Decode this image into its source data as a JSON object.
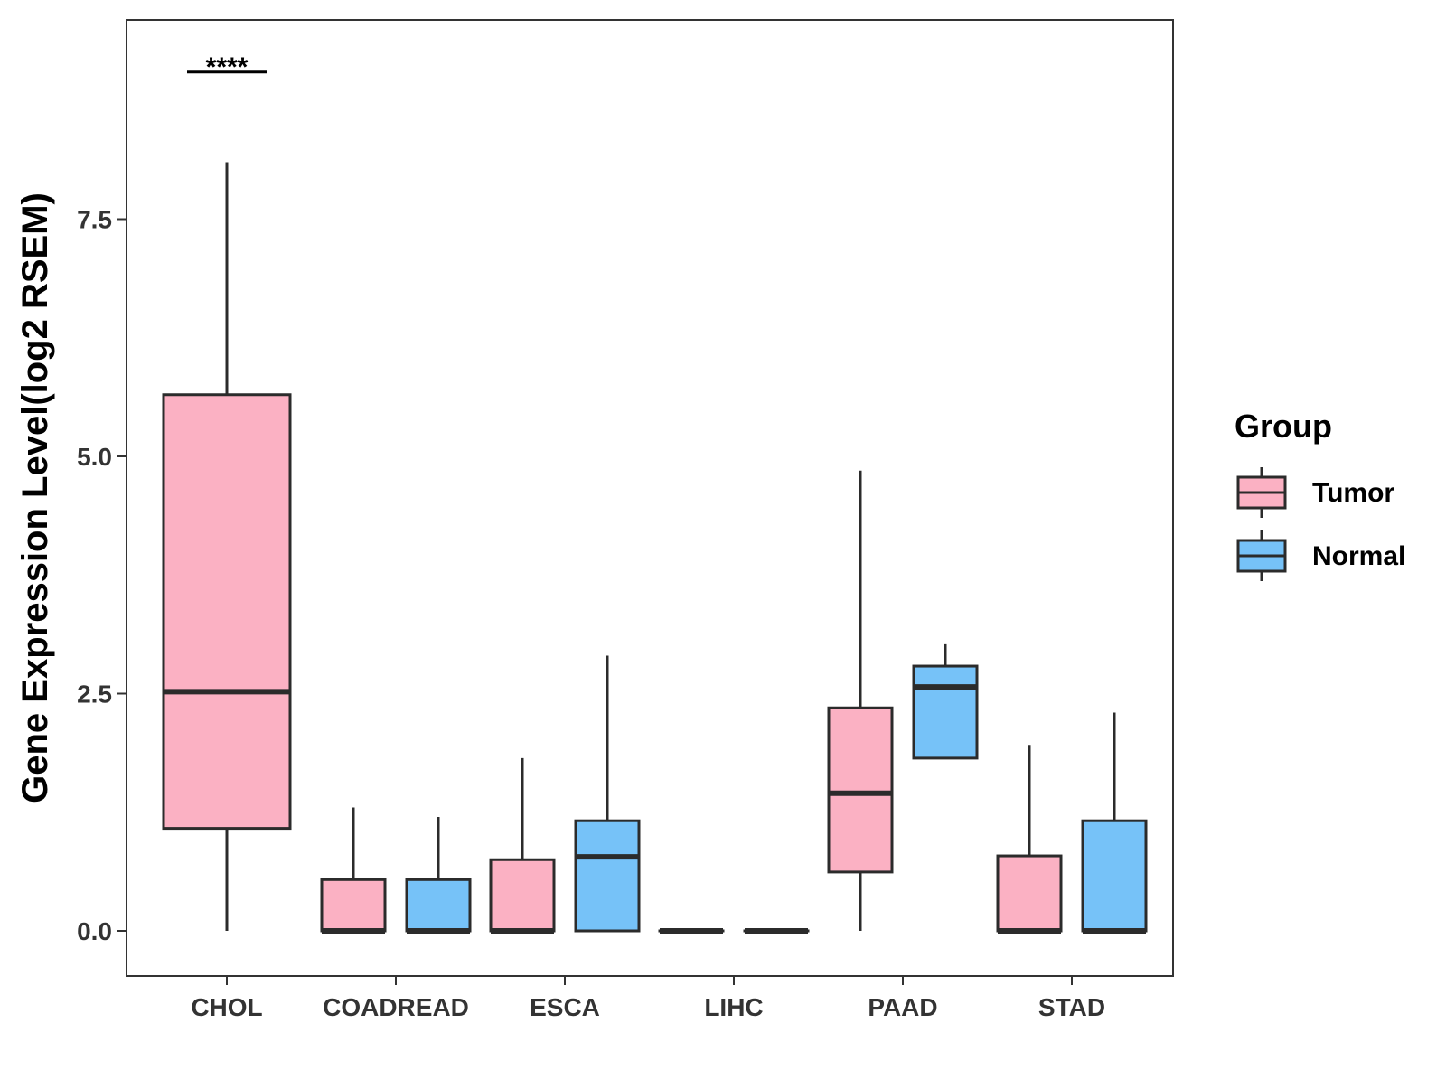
{
  "chart_data": {
    "type": "boxplot",
    "title": "",
    "xlabel": "",
    "ylabel": "Gene Expression Level(log2 RSEM)",
    "ylim": [
      -0.45,
      9.65
    ],
    "yticks": [
      0.0,
      2.5,
      5.0,
      7.5
    ],
    "ytick_labels": [
      "0.0",
      "2.5",
      "5.0",
      "7.5"
    ],
    "categories": [
      "CHOL",
      "COADREAD",
      "ESCA",
      "LIHC",
      "PAAD",
      "STAD"
    ],
    "legend": {
      "title": "Group",
      "position": "right",
      "entries": [
        {
          "name": "Tumor",
          "color": "#FBB1C3"
        },
        {
          "name": "Normal",
          "color": "#76C2F8"
        }
      ]
    },
    "series": [
      {
        "name": "Tumor",
        "color": "#FBB1C3",
        "boxes": [
          {
            "category": "CHOL",
            "min": 0.0,
            "q1": 1.08,
            "median": 2.52,
            "q3": 5.65,
            "max": 8.1
          },
          {
            "category": "COADREAD",
            "min": 0.0,
            "q1": 0.0,
            "median": 0.0,
            "q3": 0.54,
            "max": 1.3
          },
          {
            "category": "ESCA",
            "min": 0.0,
            "q1": 0.0,
            "median": 0.0,
            "q3": 0.75,
            "max": 1.82
          },
          {
            "category": "LIHC",
            "min": 0.0,
            "q1": 0.0,
            "median": 0.0,
            "q3": 0.0,
            "max": 0.0
          },
          {
            "category": "PAAD",
            "min": 0.0,
            "q1": 0.62,
            "median": 1.45,
            "q3": 2.35,
            "max": 4.85
          },
          {
            "category": "STAD",
            "min": 0.0,
            "q1": 0.0,
            "median": 0.0,
            "q3": 0.79,
            "max": 1.96
          }
        ]
      },
      {
        "name": "Normal",
        "color": "#76C2F8",
        "boxes": [
          {
            "category": "CHOL",
            "min": null,
            "q1": null,
            "median": null,
            "q3": null,
            "max": null
          },
          {
            "category": "COADREAD",
            "min": 0.0,
            "q1": 0.0,
            "median": 0.0,
            "q3": 0.54,
            "max": 1.2
          },
          {
            "category": "ESCA",
            "min": 0.0,
            "q1": 0.0,
            "median": 0.78,
            "q3": 1.16,
            "max": 2.9
          },
          {
            "category": "LIHC",
            "min": 0.0,
            "q1": 0.0,
            "median": 0.0,
            "q3": 0.0,
            "max": 0.0
          },
          {
            "category": "PAAD",
            "min": 1.82,
            "q1": 1.82,
            "median": 2.57,
            "q3": 2.79,
            "max": 3.02
          },
          {
            "category": "STAD",
            "min": 0.0,
            "q1": 0.0,
            "median": 0.0,
            "q3": 1.16,
            "max": 2.3
          }
        ]
      }
    ],
    "annotations": [
      {
        "category": "CHOL",
        "label": "****",
        "y": 9.05
      }
    ]
  }
}
